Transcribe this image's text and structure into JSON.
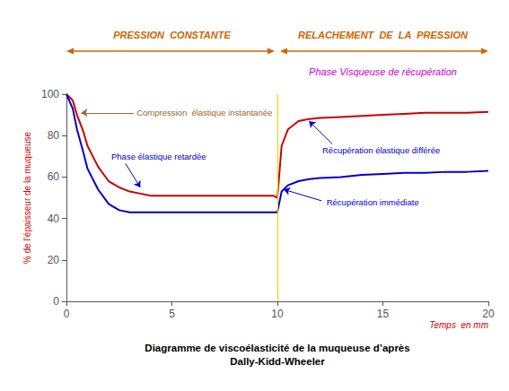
{
  "chart_data": {
    "type": "line",
    "x": [
      0,
      0.3,
      0.5,
      0.8,
      1.0,
      1.5,
      2.0,
      2.5,
      3.0,
      3.5,
      4.0,
      5.0,
      6.0,
      7.0,
      8.0,
      9.0,
      9.5,
      9.8,
      10.0,
      10.2,
      10.5,
      11.0,
      11.5,
      12.0,
      13.0,
      14.0,
      15.0,
      16.0,
      17.0,
      18.0,
      19.0,
      20.0
    ],
    "series": [
      {
        "color": "#cc0000",
        "values": [
          100,
          97,
          90,
          82,
          75,
          65,
          58,
          55,
          53,
          52,
          51,
          51,
          51,
          51,
          51,
          51,
          51,
          51,
          50,
          75,
          83,
          87,
          88,
          88.5,
          89,
          89.5,
          90,
          90.5,
          91,
          91,
          91,
          91.5
        ]
      },
      {
        "color": "#0000cc",
        "values": [
          100,
          93,
          83,
          72,
          64,
          54,
          47,
          44,
          43,
          43,
          43,
          43,
          43,
          43,
          43,
          43,
          43,
          43,
          43,
          53,
          56,
          58,
          59,
          59.5,
          60,
          61,
          61.5,
          62,
          62,
          62.5,
          62.5,
          63
        ]
      }
    ],
    "vlines": [
      {
        "x": 10,
        "color": "#dddd00"
      }
    ],
    "xlim": [
      0,
      20
    ],
    "ylim": [
      0,
      100
    ],
    "xticks": [
      0,
      5,
      10,
      15,
      20
    ],
    "yticks": [
      0,
      20,
      40,
      60,
      80,
      100
    ],
    "xlabel": "Diagramme de viscoélasticité de la muqueuse d’après\nDally-Kidd-Wheeler",
    "ylabel": "% de l’épaisseur de la muqueuse",
    "grid": false,
    "annotations": [
      {
        "text": "PRESSION  CONSTANTE",
        "color": "#cc6600"
      },
      {
        "text": "RELACHEMENT  DE  LA  PRESSION",
        "color": "#cc6600"
      },
      {
        "text": "Phase Visqueuse de récupération",
        "color": "#cc00cc"
      },
      {
        "text": "Temps  en mm",
        "color": "#cc0000"
      },
      {
        "text": "Compression  élastique instantanée",
        "color": "#996633"
      },
      {
        "text": "Phase élastique retardée",
        "color": "#0000cc"
      },
      {
        "text": "Récupération élastique différée",
        "color": "#0000cc"
      },
      {
        "text": "Récupération immédiate",
        "color": "#0000cc"
      }
    ]
  }
}
